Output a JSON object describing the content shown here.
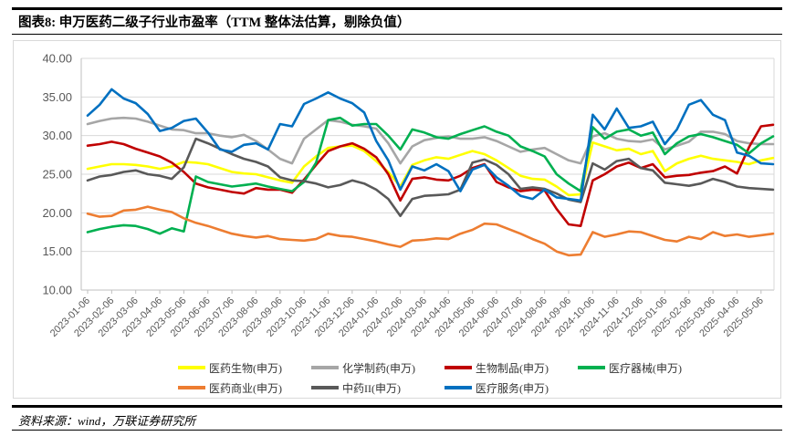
{
  "header": {
    "title": "图表8: 申万医药二级子行业市盈率（TTM 整体法估算，剔除负值）"
  },
  "footer": {
    "source": "资料来源：wind，万联证券研究所"
  },
  "chart_data": {
    "type": "line",
    "title": "申万医药二级子行业市盈率（TTM 整体法估算，剔除负值）",
    "xlabel": "",
    "ylabel": "",
    "grid": true,
    "legend_position": "bottom",
    "y_axis": {
      "min": 10,
      "max": 40,
      "step": 5,
      "tick_labels": [
        "40.00",
        "35.00",
        "30.00",
        "25.00",
        "20.00",
        "15.00",
        "10.00"
      ]
    },
    "x_axis": {
      "tick_labels": [
        "2023-01-06",
        "2023-02-06",
        "2023-03-06",
        "2023-04-06",
        "2023-05-06",
        "2023-06-06",
        "2023-07-06",
        "2023-08-06",
        "2023-09-06",
        "2023-10-06",
        "2023-11-06",
        "2023-12-06",
        "2024-01-06",
        "2024-02-06",
        "2024-03-06",
        "2024-04-06",
        "2024-05-06",
        "2024-06-06",
        "2024-07-06",
        "2024-08-06",
        "2024-09-06",
        "2024-10-06",
        "2024-11-06",
        "2024-12-06",
        "2025-01-06",
        "2025-02-06",
        "2025-03-06",
        "2025-04-06",
        "2025-05-06"
      ]
    },
    "samples_per_month": 2,
    "series": [
      {
        "name": "医药生物(申万)",
        "color": "#FFFF00",
        "values": [
          25.7,
          26.0,
          26.3,
          26.3,
          26.2,
          26.0,
          25.7,
          26.0,
          26.6,
          26.5,
          26.3,
          25.8,
          25.3,
          25.1,
          25.0,
          24.6,
          24.2,
          23.9,
          26.0,
          27.3,
          28.4,
          28.6,
          28.7,
          28.0,
          26.7,
          25.3,
          23.4,
          26.2,
          26.8,
          27.2,
          27.0,
          27.5,
          28.0,
          27.6,
          26.8,
          25.8,
          24.8,
          24.4,
          24.3,
          23.4,
          22.3,
          22.4,
          29.1,
          28.6,
          28.1,
          28.3,
          27.6,
          28.0,
          25.4,
          26.4,
          27.0,
          27.4,
          27.0,
          26.8,
          26.6,
          26.3,
          26.8,
          27.1
        ]
      },
      {
        "name": "化学制药(申万)",
        "color": "#A6A6A6",
        "values": [
          31.5,
          31.9,
          32.2,
          32.3,
          32.2,
          31.8,
          31.3,
          30.8,
          30.7,
          30.3,
          30.3,
          30.0,
          29.8,
          30.1,
          29.3,
          28.2,
          27.0,
          26.4,
          29.6,
          30.8,
          32.0,
          31.8,
          31.4,
          31.2,
          30.9,
          29.0,
          26.4,
          28.6,
          29.4,
          29.7,
          29.9,
          29.6,
          29.6,
          29.8,
          29.3,
          28.6,
          27.9,
          28.2,
          28.4,
          27.6,
          26.8,
          26.4,
          29.9,
          30.3,
          29.6,
          29.3,
          29.2,
          29.5,
          28.2,
          28.7,
          29.2,
          30.5,
          30.5,
          30.2,
          29.3,
          29.0,
          28.9,
          28.9
        ]
      },
      {
        "name": "生物制品(申万)",
        "color": "#C00000",
        "values": [
          28.7,
          28.9,
          29.2,
          28.9,
          28.3,
          27.8,
          27.3,
          26.5,
          25.3,
          23.8,
          23.3,
          23.0,
          22.7,
          22.5,
          23.2,
          23.0,
          23.0,
          22.6,
          24.3,
          26.2,
          28.0,
          28.6,
          29.0,
          28.3,
          27.2,
          25.0,
          21.6,
          24.4,
          24.6,
          24.3,
          24.2,
          24.8,
          25.8,
          26.3,
          24.0,
          23.3,
          22.8,
          23.0,
          22.9,
          20.5,
          18.5,
          18.3,
          24.2,
          25.0,
          26.0,
          26.5,
          25.8,
          26.3,
          24.6,
          24.8,
          24.9,
          25.2,
          25.4,
          26.0,
          25.1,
          28.5,
          31.2,
          31.4
        ]
      },
      {
        "name": "医疗器械(申万)",
        "color": "#00B050",
        "values": [
          17.5,
          17.9,
          18.2,
          18.4,
          18.3,
          17.9,
          17.3,
          18.0,
          17.6,
          24.7,
          24.0,
          23.7,
          23.4,
          23.6,
          23.8,
          23.4,
          23.1,
          22.8,
          24.0,
          26.5,
          32.0,
          32.3,
          31.3,
          31.5,
          31.5,
          30.0,
          28.2,
          30.8,
          30.4,
          29.8,
          29.6,
          30.2,
          30.7,
          31.2,
          30.5,
          30.0,
          28.6,
          28.0,
          27.3,
          25.0,
          23.8,
          22.8,
          31.1,
          29.6,
          30.5,
          30.8,
          30.0,
          30.4,
          27.6,
          29.0,
          29.9,
          30.2,
          29.8,
          29.3,
          28.8,
          27.7,
          29.0,
          29.9
        ]
      },
      {
        "name": "医药商业(申万)",
        "color": "#ED7D31",
        "values": [
          19.9,
          19.5,
          19.6,
          20.3,
          20.4,
          20.8,
          20.4,
          20.1,
          19.3,
          18.7,
          18.3,
          17.8,
          17.3,
          17.0,
          16.8,
          17.0,
          16.6,
          16.5,
          16.4,
          16.6,
          17.3,
          17.0,
          16.9,
          16.6,
          16.3,
          15.9,
          15.6,
          16.4,
          16.5,
          16.7,
          16.6,
          17.3,
          17.8,
          18.6,
          18.5,
          17.9,
          17.3,
          16.6,
          16.0,
          15.0,
          14.5,
          14.6,
          17.5,
          16.9,
          17.2,
          17.6,
          17.5,
          17.0,
          16.5,
          16.3,
          16.9,
          16.6,
          17.5,
          17.0,
          17.2,
          16.9,
          17.1,
          17.3
        ]
      },
      {
        "name": "中药II(申万)",
        "color": "#595959",
        "values": [
          24.2,
          24.7,
          24.9,
          25.3,
          25.5,
          25.0,
          24.8,
          24.4,
          25.9,
          29.6,
          29.0,
          28.3,
          27.6,
          27.0,
          26.6,
          26.0,
          24.6,
          24.2,
          24.1,
          23.8,
          23.3,
          23.6,
          24.2,
          23.8,
          23.0,
          21.8,
          19.6,
          21.8,
          22.2,
          22.3,
          22.4,
          23.0,
          26.5,
          26.9,
          26.2,
          25.0,
          23.1,
          23.3,
          23.1,
          22.5,
          21.7,
          21.4,
          26.4,
          25.6,
          26.7,
          27.0,
          25.8,
          25.5,
          23.9,
          23.7,
          23.5,
          23.8,
          24.4,
          24.0,
          23.4,
          23.2,
          23.1,
          23.0
        ]
      },
      {
        "name": "医疗服务(申万)",
        "color": "#0070C0",
        "values": [
          32.6,
          34.0,
          36.0,
          34.8,
          34.2,
          32.8,
          30.6,
          31.0,
          31.9,
          32.2,
          30.4,
          28.2,
          27.9,
          28.8,
          29.0,
          28.2,
          31.5,
          31.2,
          34.1,
          34.8,
          35.6,
          34.8,
          34.2,
          33.0,
          29.3,
          26.8,
          23.0,
          26.0,
          25.5,
          26.3,
          25.4,
          22.8,
          25.6,
          26.2,
          24.6,
          23.5,
          22.2,
          21.8,
          23.0,
          22.0,
          21.8,
          21.6,
          32.7,
          30.8,
          33.5,
          31.0,
          31.2,
          31.8,
          28.9,
          30.8,
          34.0,
          34.6,
          32.7,
          32.0,
          27.8,
          27.4,
          26.4,
          26.3
        ]
      }
    ],
    "legend_rows": [
      4,
      3
    ]
  }
}
